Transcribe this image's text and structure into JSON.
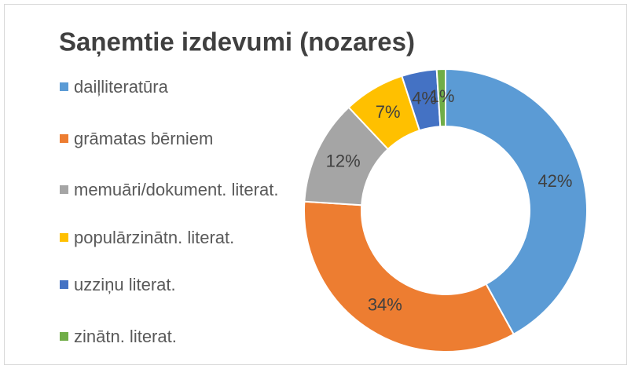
{
  "chart_data": {
    "type": "donut",
    "title": "Saņemtie izdevumi (nozares)",
    "categories": [
      "daiļliteratūra",
      "grāmatas bērniem",
      "memuāri/dokument. literat.",
      "populārzinātn. literat.",
      "uzziņu literat.",
      "zinātn. literat."
    ],
    "values": [
      42,
      34,
      12,
      7,
      4,
      1
    ],
    "value_labels": [
      "42%",
      "34%",
      "12%",
      "7%",
      "4%",
      "1%"
    ],
    "colors": [
      "#5b9bd5",
      "#ed7d31",
      "#a5a5a5",
      "#ffc000",
      "#4472c4",
      "#70ad47"
    ],
    "legend": "left"
  }
}
